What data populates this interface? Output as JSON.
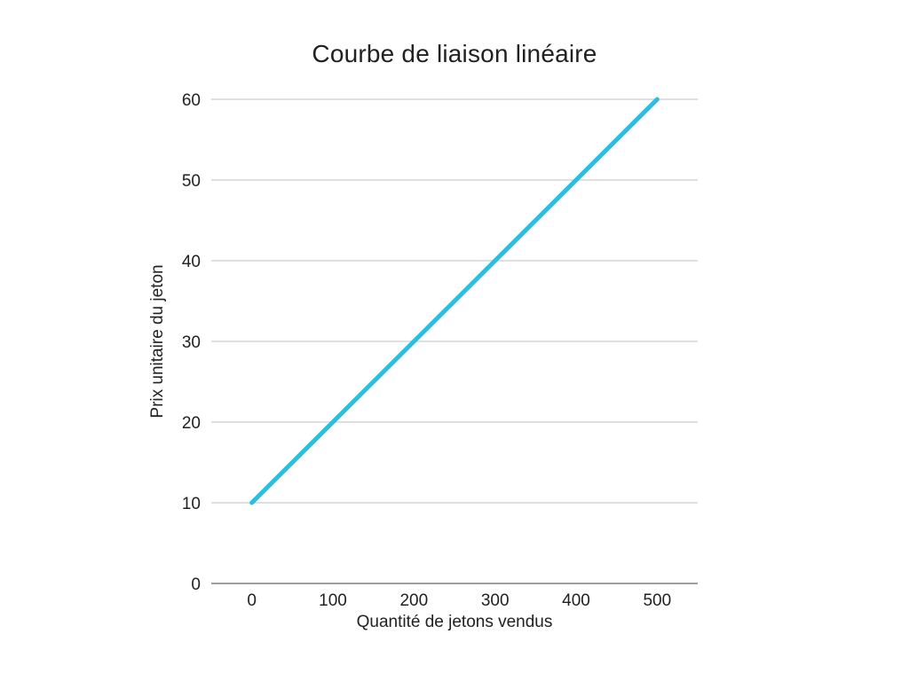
{
  "chart_data": {
    "type": "line",
    "title": "Courbe de liaison linéaire",
    "xlabel": "Quantité de jetons vendus",
    "ylabel": "Prix unitaire du jeton",
    "categories": [
      "0",
      "100",
      "200",
      "300",
      "400",
      "500"
    ],
    "series": [
      {
        "name": "Prix unitaire du jeton",
        "values": [
          10,
          20,
          30,
          40,
          50,
          60
        ],
        "color": "#29bee2"
      }
    ],
    "y_ticks": [
      0,
      10,
      20,
      30,
      40,
      50,
      60
    ],
    "ylim": [
      0,
      60
    ],
    "grid": true,
    "legend": "none",
    "colors": {
      "background": "#ffffff",
      "gridline": "#e0e0e0",
      "axis_line": "#9e9e9e",
      "text": "#212121"
    }
  }
}
